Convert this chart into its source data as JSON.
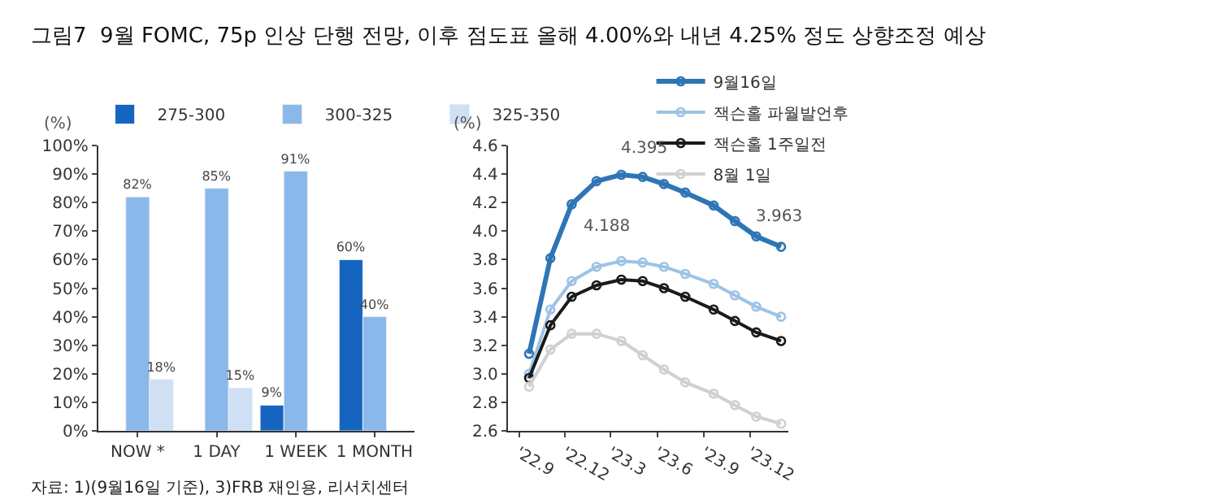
{
  "chart_data": [
    {
      "type": "bar",
      "title": "그림7  9월 FOMC, 75p 인상 단행 전망, 이후 점도표 올해 4.00%와 내년 4.25% 정도 상향조정 예상",
      "ylabel": "(%)",
      "categories": [
        "NOW *",
        "1 DAY",
        "1 WEEK",
        "1 MONTH"
      ],
      "series": [
        {
          "name": "275-300",
          "color": "#1565c0",
          "values": [
            null,
            null,
            9,
            60
          ],
          "value_labels": [
            null,
            null,
            "9%",
            "60%"
          ]
        },
        {
          "name": "300-325",
          "color": "#8ab8ea",
          "values": [
            82,
            85,
            91,
            40
          ],
          "value_labels": [
            "82%",
            "85%",
            "91%",
            "40%"
          ]
        },
        {
          "name": "325-350",
          "color": "#cfe0f5",
          "values": [
            18,
            15,
            null,
            null
          ],
          "value_labels": [
            "18%",
            "15%",
            null,
            null
          ]
        }
      ],
      "ylim": [
        0,
        100
      ],
      "yticks": [
        {
          "value": 0,
          "label": "0%"
        },
        {
          "value": 10,
          "label": "10%"
        },
        {
          "value": 20,
          "label": "20%"
        },
        {
          "value": 30,
          "label": "30%"
        },
        {
          "value": 40,
          "label": "40%"
        },
        {
          "value": 50,
          "label": "50%"
        },
        {
          "value": 60,
          "label": "60%"
        },
        {
          "value": 70,
          "label": "70%"
        },
        {
          "value": 80,
          "label": "80%"
        },
        {
          "value": 90,
          "label": "90%"
        },
        {
          "value": 100,
          "label": "100%"
        }
      ],
      "grid": false,
      "legend": "top",
      "annotations": [
        "자료: 1)(9월16일 기준), 3)FRB 재인용, 리서치센터"
      ]
    },
    {
      "type": "line",
      "ylabel": "(%)",
      "x": [
        "2022-09-21",
        "2022-11-02",
        "2022-12-14",
        "2023-02-01",
        "2023-03-22",
        "2023-05-03",
        "2023-06-14",
        "2023-07-26",
        "2023-09-20",
        "2023-11-01",
        "2023-12-13",
        "2024-01-31"
      ],
      "series": [
        {
          "name": "9월16일",
          "color": "#2e75b6",
          "values": [
            3.14,
            3.81,
            4.188,
            4.35,
            4.395,
            4.38,
            4.33,
            4.27,
            4.18,
            4.07,
            3.963,
            3.89
          ]
        },
        {
          "name": "잭슨홀 파월발언후",
          "color": "#9dc3e6",
          "values": [
            3.0,
            3.45,
            3.65,
            3.75,
            3.79,
            3.78,
            3.75,
            3.7,
            3.63,
            3.55,
            3.47,
            3.4
          ]
        },
        {
          "name": "잭슨홀 1주일전",
          "color": "#1a1a1a",
          "values": [
            2.97,
            3.34,
            3.54,
            3.62,
            3.66,
            3.65,
            3.6,
            3.54,
            3.45,
            3.37,
            3.29,
            3.23
          ]
        },
        {
          "name": "8월 1일",
          "color": "#d0d0d0",
          "values": [
            2.91,
            3.17,
            3.28,
            3.28,
            3.23,
            3.13,
            3.03,
            2.94,
            2.86,
            2.78,
            2.7,
            2.65
          ]
        }
      ],
      "xlim": [
        "2022-08-10",
        "2024-02-15"
      ],
      "xticks": [
        {
          "value": "2022-09-01",
          "label": "'22.9"
        },
        {
          "value": "2022-12-01",
          "label": "'22.12"
        },
        {
          "value": "2023-03-01",
          "label": "'23.3"
        },
        {
          "value": "2023-06-01",
          "label": "'23.6"
        },
        {
          "value": "2023-09-01",
          "label": "'23.9"
        },
        {
          "value": "2023-12-01",
          "label": "'23.12"
        }
      ],
      "ylim": [
        2.6,
        4.6
      ],
      "yticks": [
        2.6,
        2.8,
        {
          "value": 3.0,
          "label": "3.0"
        },
        3.2,
        3.4,
        3.6,
        3.8,
        {
          "value": 4.0,
          "label": "4.0"
        },
        4.2,
        4.4,
        4.6
      ],
      "grid": false,
      "legend": "top right",
      "marker": "circle",
      "line_style": "solid",
      "annotations": [
        {
          "text": "4.188",
          "x": "2022-12-14",
          "y": 4.188
        },
        {
          "text": "4.395",
          "x": "2023-03-22",
          "y": 4.395
        },
        {
          "text": "3.963",
          "x": "2023-12-13",
          "y": 3.963
        }
      ]
    }
  ]
}
